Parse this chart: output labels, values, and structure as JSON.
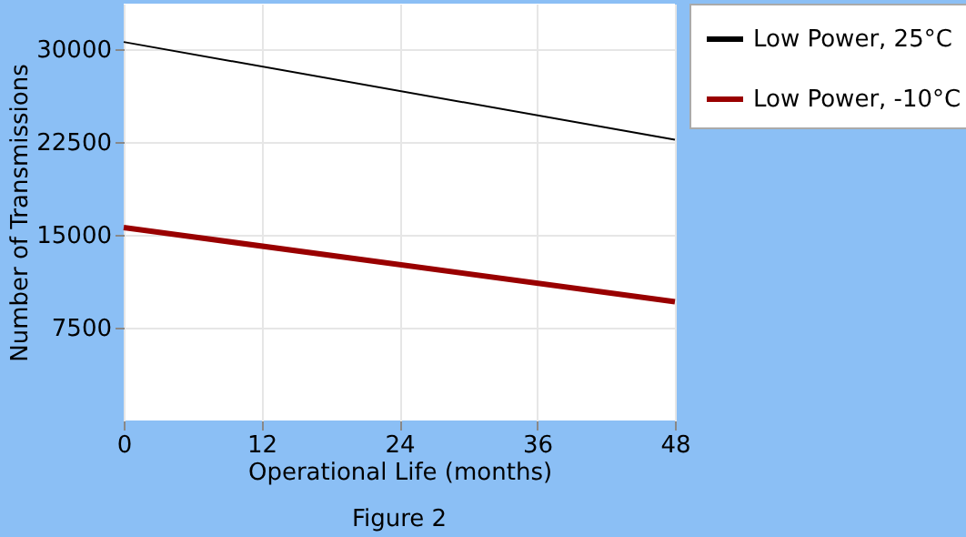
{
  "chart_data": {
    "type": "line",
    "xlabel": "Operational Life (months)",
    "ylabel": "Number of Transmissions",
    "x": [
      0,
      48
    ],
    "xlim": [
      0,
      48
    ],
    "xticks": [
      0,
      12,
      24,
      36,
      48
    ],
    "ylim": [
      0,
      33700
    ],
    "yticks": [
      7500,
      15000,
      22500,
      30000
    ],
    "series": [
      {
        "name": "Low Power, 25°C",
        "color": "#000000",
        "values": [
          30600,
          22700
        ]
      },
      {
        "name": "Low Power, -10°C",
        "color": "#990000",
        "values": [
          15600,
          9600
        ]
      }
    ],
    "grid": true,
    "legend": "right",
    "marker": "none",
    "line_style": "solid",
    "annotations": [
      "Figure 2"
    ]
  }
}
